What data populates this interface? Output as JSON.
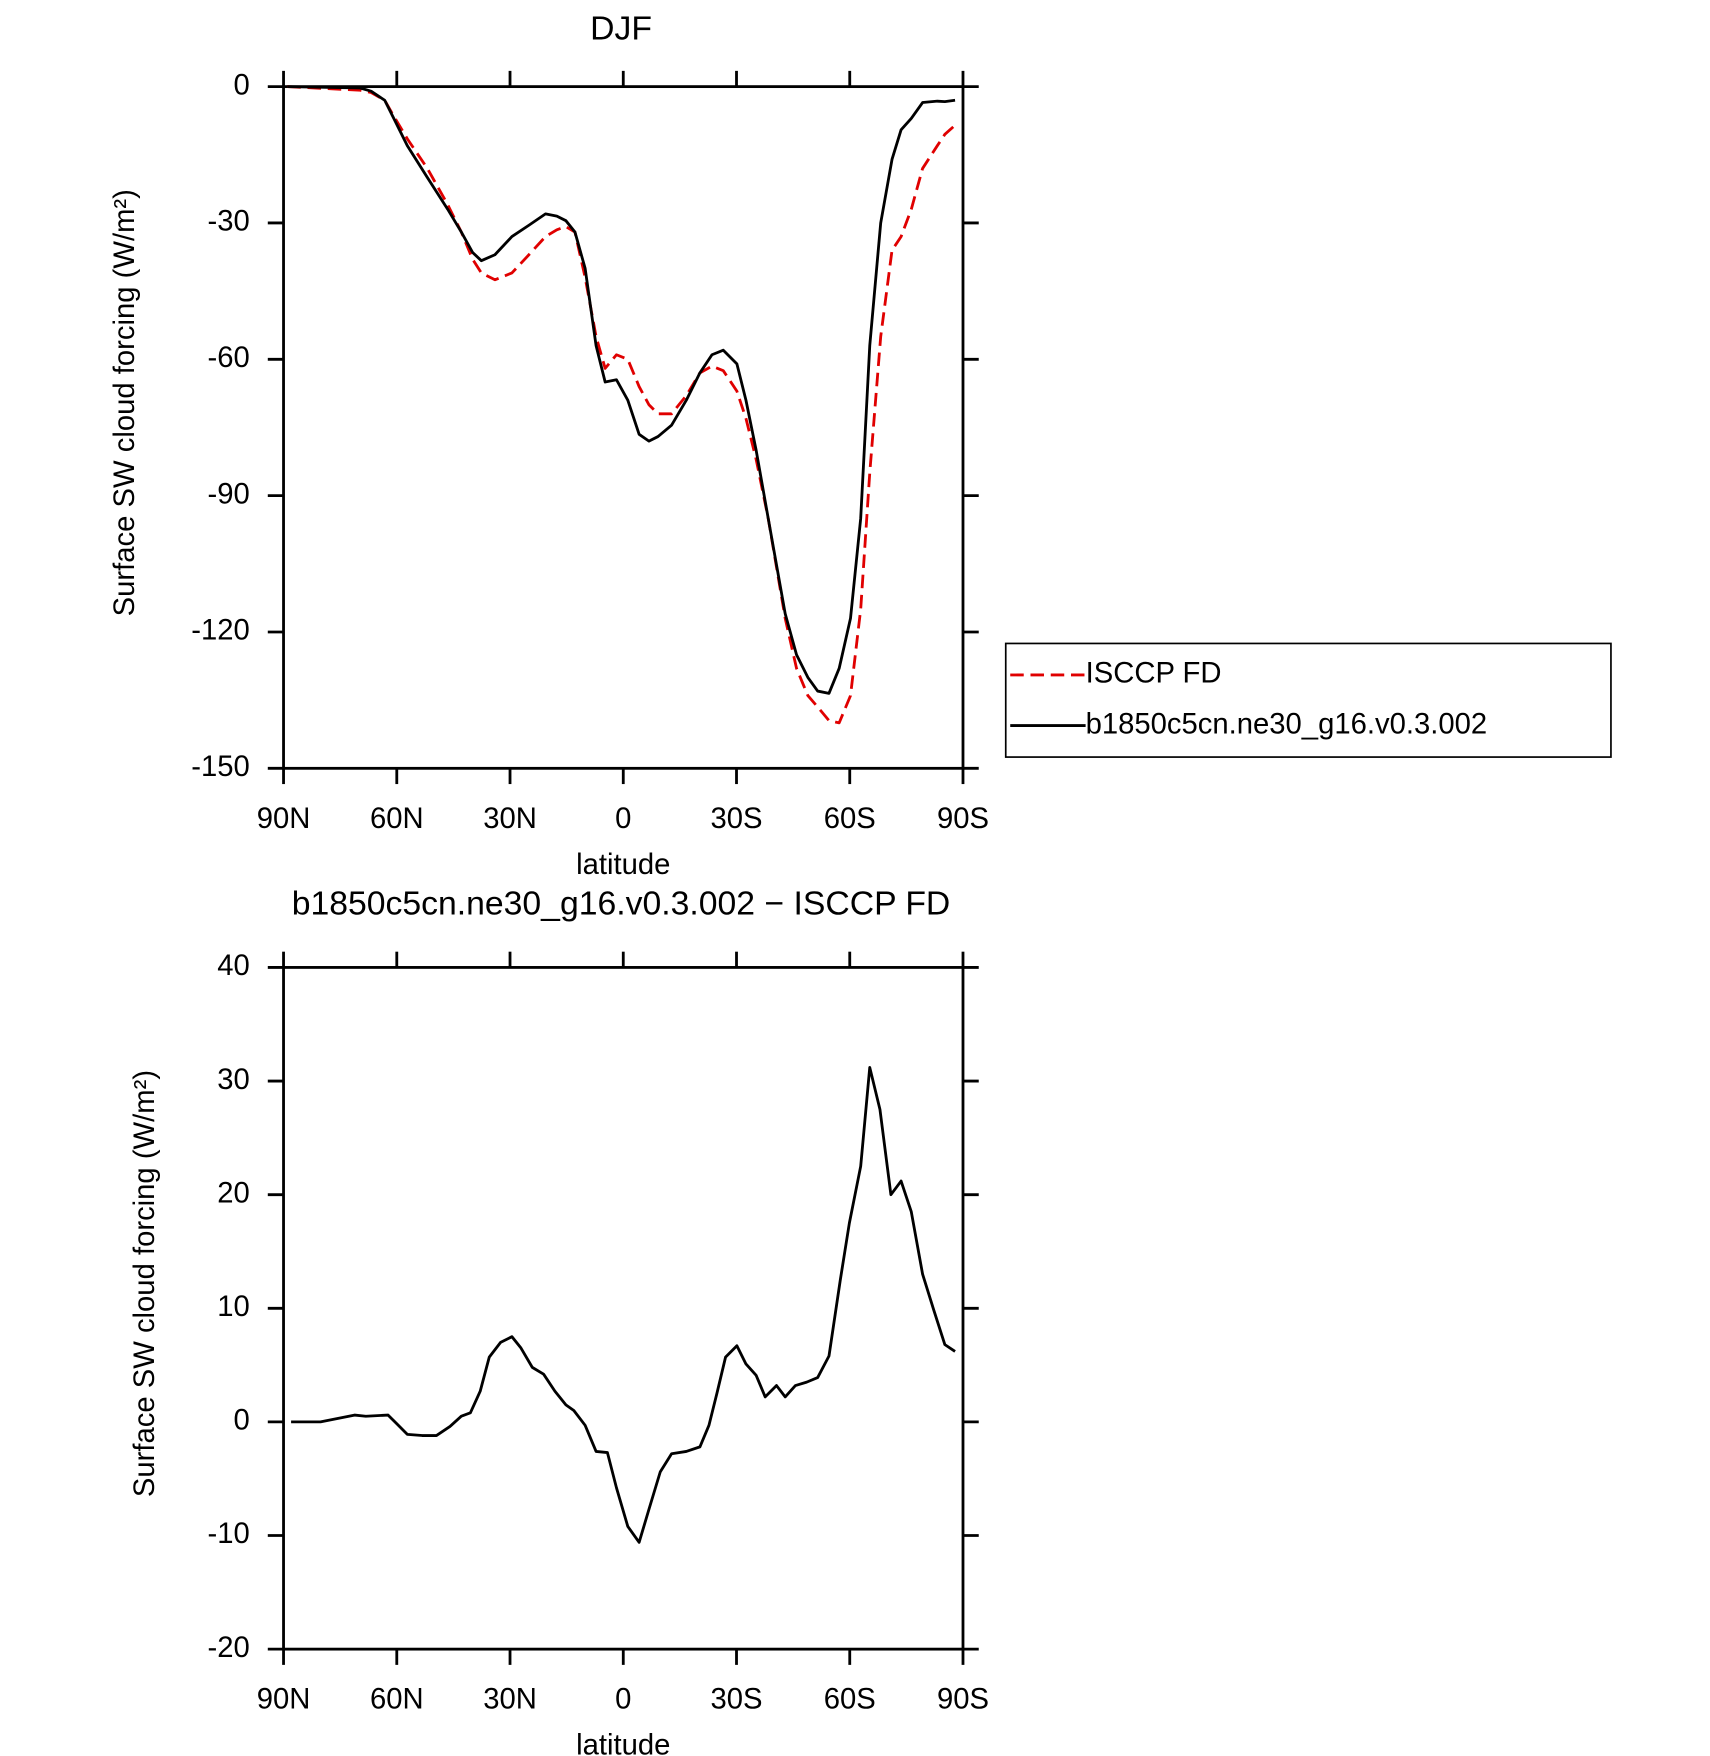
{
  "chart_data": [
    {
      "type": "line",
      "title": "DJF",
      "xlabel": "latitude",
      "ylabel": "Surface SW cloud forcing (W/m²)",
      "x": [
        89,
        69.7,
        66.8,
        63.2,
        60.8,
        57.2,
        51.9,
        46.5,
        42.9,
        39.9,
        37.6,
        34,
        29.5,
        25,
        20.6,
        17.6,
        15.2,
        12.8,
        10.1,
        7.2,
        4.8,
        1.8,
        -1.2,
        -4.2,
        -6.8,
        -9.2,
        -12.8,
        -16.7,
        -20.3,
        -23.5,
        -26.5,
        -30.1,
        -32.5,
        -35.2,
        -38.4,
        -42.9,
        -45.9,
        -48.9,
        -51.5,
        -54.5,
        -57.2,
        -60.2,
        -62.9,
        -65.3,
        -68.2,
        -71.2,
        -73.6,
        -76.3,
        -79.3,
        -83.2,
        -85.2,
        -87.9
      ],
      "series": [
        {
          "name": "ISCCP FD",
          "color": "#e00000",
          "dash": true,
          "values": [
            0,
            -0.8,
            -1.3,
            -3,
            -6.5,
            -11.5,
            -18,
            -26,
            -32,
            -38,
            -41,
            -42.5,
            -41,
            -37,
            -33,
            -31.5,
            -30.8,
            -32,
            -42,
            -55,
            -62,
            -59,
            -60,
            -66,
            -70,
            -72,
            -72,
            -68,
            -63,
            -61.5,
            -62.5,
            -67,
            -73,
            -82,
            -95,
            -117,
            -128,
            -134,
            -136.5,
            -139.5,
            -140,
            -134,
            -115,
            -85,
            -55,
            -36,
            -33,
            -27,
            -18,
            -13,
            -10.5,
            -8.5
          ]
        },
        {
          "name": "b1850c5cn.ne30_g16.v0.3.002",
          "color": "#000000",
          "dash": false,
          "values": [
            0,
            -0.3,
            -1,
            -3,
            -7,
            -13,
            -20,
            -27,
            -32,
            -36.5,
            -38.3,
            -37,
            -33,
            -30.5,
            -28,
            -28.5,
            -29.5,
            -32,
            -40,
            -57,
            -65,
            -64.5,
            -69,
            -76.5,
            -78,
            -77,
            -74.5,
            -69,
            -63,
            -59,
            -58,
            -61,
            -69,
            -80,
            -95,
            -116,
            -125,
            -130,
            -133,
            -133.5,
            -128,
            -117,
            -95,
            -57,
            -30,
            -16,
            -9.5,
            -7,
            -3.5,
            -3.2,
            -3.3,
            -3
          ]
        }
      ],
      "xlim": [
        90,
        -90
      ],
      "xticks": [
        {
          "value": 90,
          "label": "90N"
        },
        {
          "value": 60,
          "label": "60N"
        },
        {
          "value": 30,
          "label": "30N"
        },
        0,
        {
          "value": -30,
          "label": "30S"
        },
        {
          "value": -60,
          "label": "60S"
        },
        {
          "value": -90,
          "label": "90S"
        }
      ],
      "ylim": [
        -150,
        0
      ],
      "yticks": [
        0,
        -30,
        -60,
        -90,
        -120,
        -150
      ],
      "legend": "right"
    },
    {
      "type": "line",
      "title": "b1850c5cn.ne30_g16.v0.3.002 − ISCCP FD",
      "xlabel": "latitude",
      "ylabel": "Surface SW cloud forcing (W/m²)",
      "x": [
        88,
        80.2,
        75.7,
        71.2,
        68.2,
        62.3,
        59.9,
        57.2,
        53.3,
        49.5,
        45.9,
        42.9,
        40.5,
        37.9,
        35.5,
        32.5,
        29.5,
        27.1,
        24.1,
        21.1,
        18.1,
        15.2,
        13.1,
        10.1,
        7.2,
        4.2,
        1.8,
        -1.2,
        -4.2,
        -6.8,
        -9.8,
        -12.8,
        -16.7,
        -20.3,
        -22.7,
        -24.8,
        -27.1,
        -30.1,
        -32.5,
        -35.2,
        -37.6,
        -40.6,
        -42.9,
        -45.6,
        -48.6,
        -51.5,
        -54.5,
        -57.5,
        -59.9,
        -62.9,
        -65.3,
        -68,
        -70.9,
        -73.6,
        -76.3,
        -79.3,
        -82.3,
        -85.2,
        -87.9
      ],
      "series": [
        {
          "color": "#000000",
          "dash": false,
          "values": [
            0,
            0,
            0.3,
            0.6,
            0.5,
            0.6,
            -0.2,
            -1.1,
            -1.2,
            -1.2,
            -0.4,
            0.5,
            0.8,
            2.7,
            5.7,
            7,
            7.5,
            6.5,
            4.8,
            4.2,
            2.7,
            1.5,
            1,
            -0.3,
            -2.6,
            -2.7,
            -5.8,
            -9.2,
            -10.6,
            -7.7,
            -4.4,
            -2.8,
            -2.6,
            -2.2,
            -0.3,
            2.5,
            5.7,
            6.7,
            5.1,
            4.1,
            2.2,
            3.2,
            2.2,
            3.2,
            3.5,
            3.9,
            5.8,
            12.5,
            17.5,
            22.5,
            31.2,
            27.5,
            20,
            21.2,
            18.5,
            13,
            9.8,
            6.8,
            6.2
          ]
        }
      ],
      "xlim": [
        90,
        -90
      ],
      "xticks": [
        {
          "value": 90,
          "label": "90N"
        },
        {
          "value": 60,
          "label": "60N"
        },
        {
          "value": 30,
          "label": "30N"
        },
        0,
        {
          "value": -30,
          "label": "30S"
        },
        {
          "value": -60,
          "label": "60S"
        },
        {
          "value": -90,
          "label": "90S"
        }
      ],
      "ylim": [
        -20,
        40
      ],
      "yticks": [
        40,
        30,
        20,
        10,
        0,
        -10,
        -20
      ]
    }
  ]
}
